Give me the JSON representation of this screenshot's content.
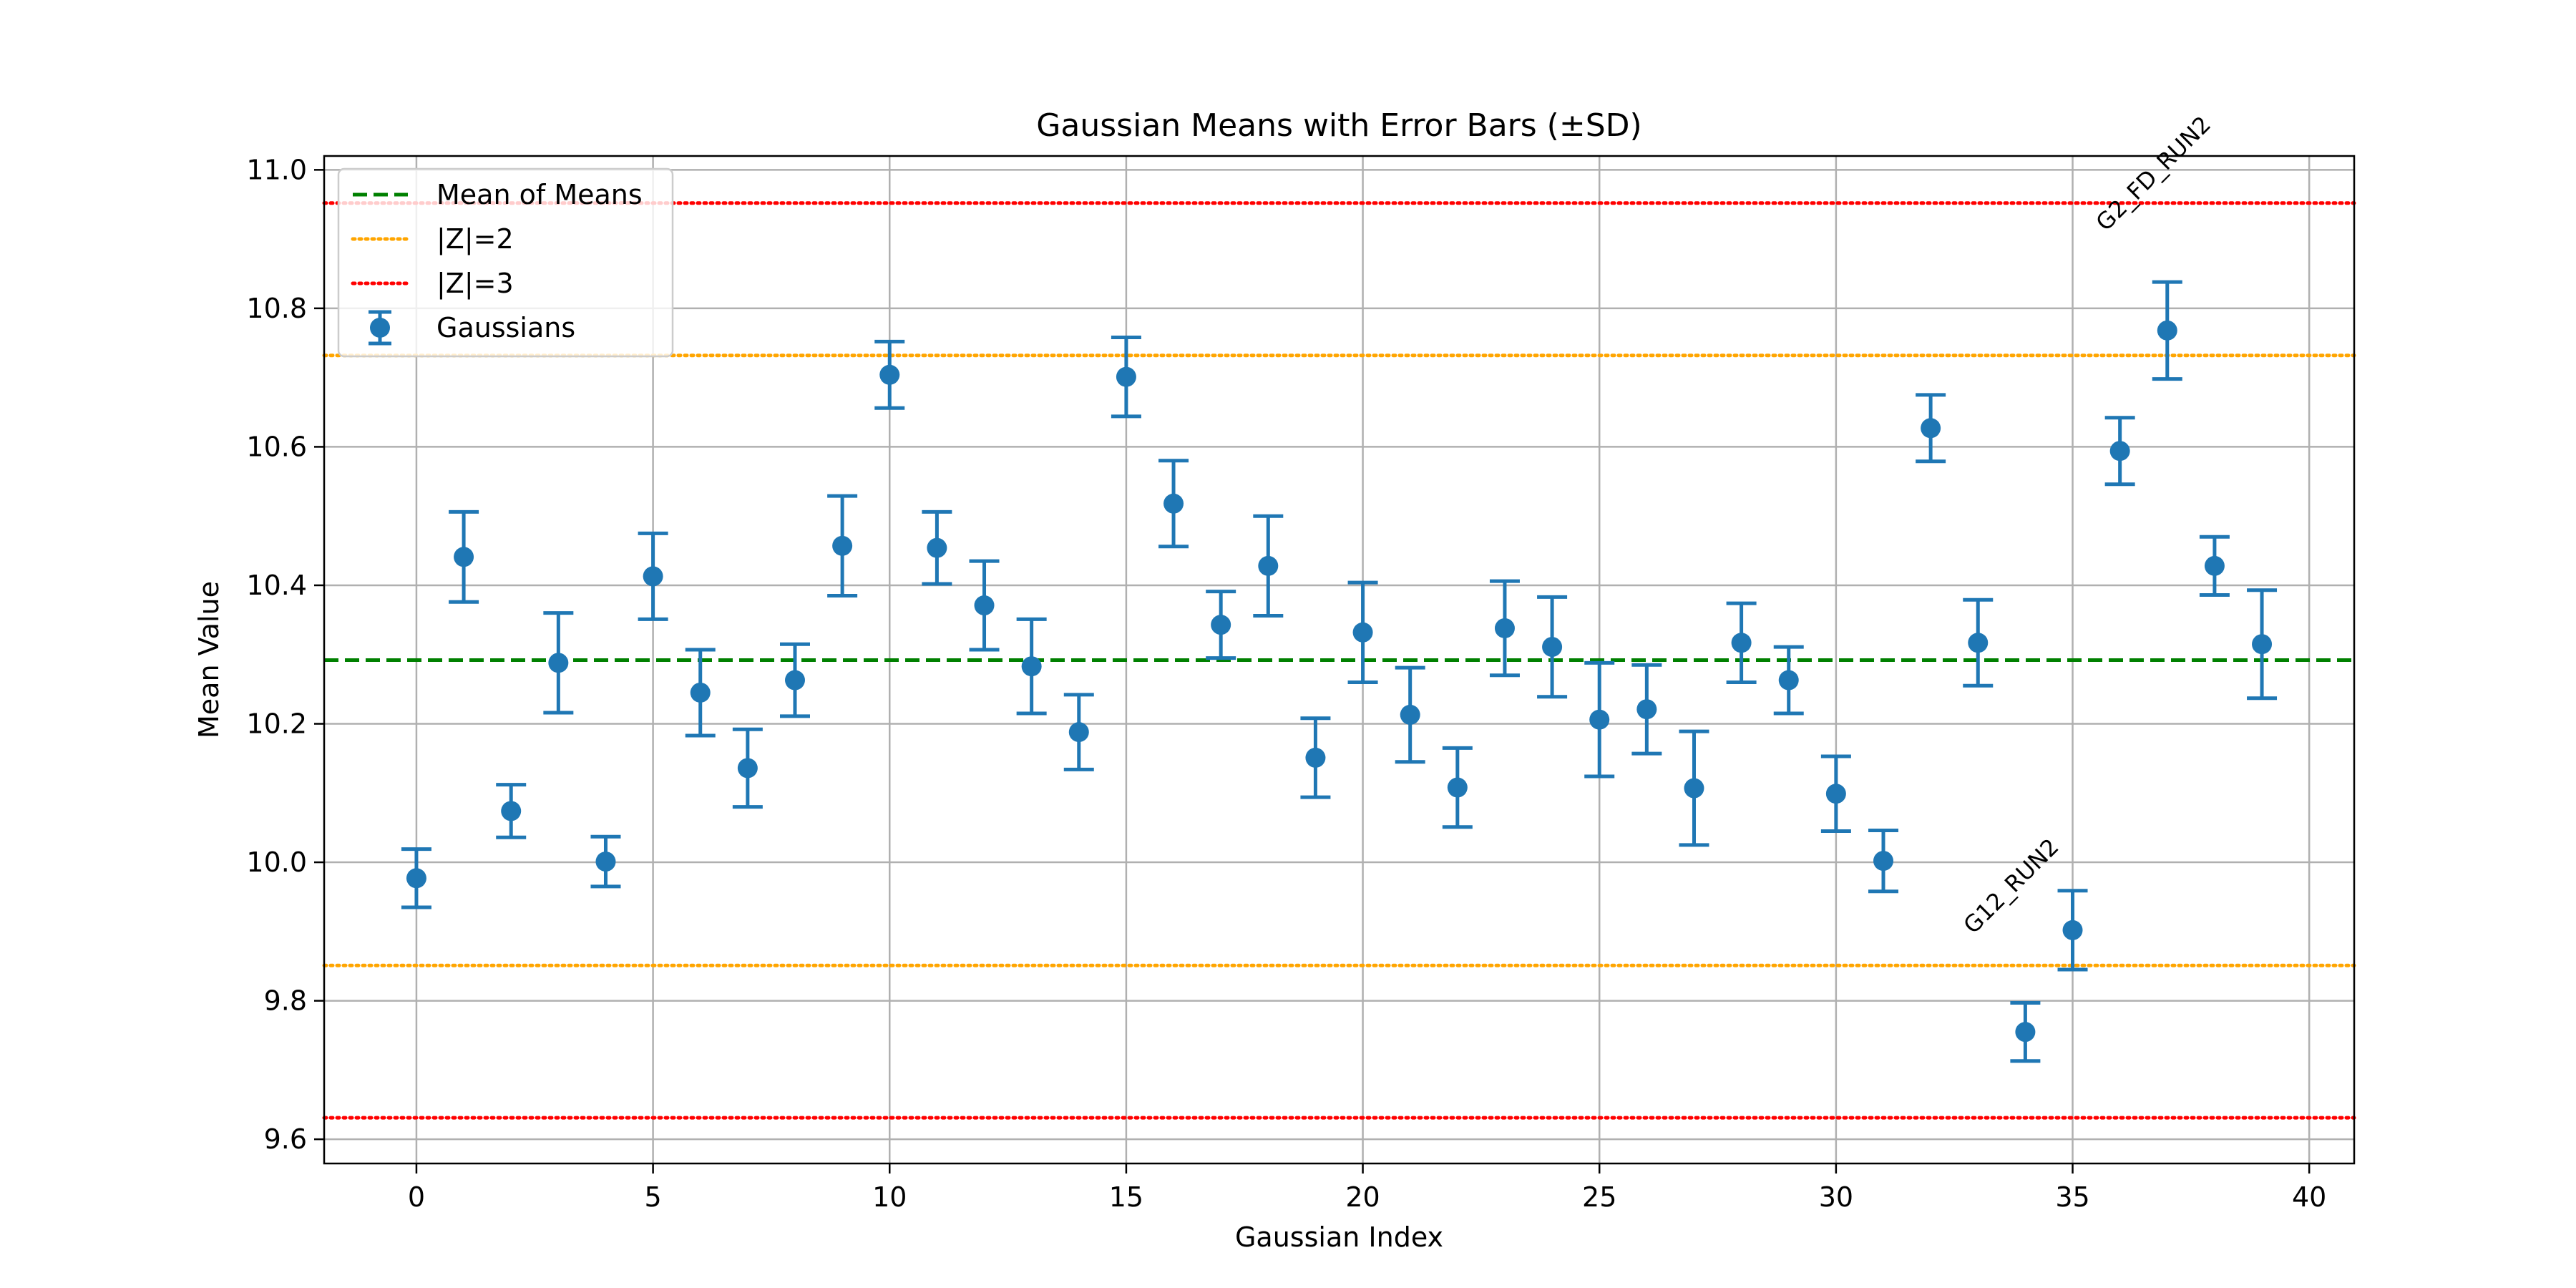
{
  "chart_data": {
    "type": "scatter",
    "title": "Gaussian Means with Error Bars (±SD)",
    "xlabel": "Gaussian Index",
    "ylabel": "Mean Value",
    "xlim": [
      -1.95,
      40.95
    ],
    "ylim": [
      9.565,
      11.02
    ],
    "x_ticks": [
      0,
      5,
      10,
      15,
      20,
      25,
      30,
      35,
      40
    ],
    "y_ticks": [
      9.6,
      9.8,
      10.0,
      10.2,
      10.4,
      10.6,
      10.8,
      11.0
    ],
    "grid": true,
    "legend_position": "top-left",
    "series": [
      {
        "name": "Gaussians",
        "color": "#1f77b4",
        "x": [
          0,
          1,
          2,
          3,
          4,
          5,
          6,
          7,
          8,
          9,
          10,
          11,
          12,
          13,
          14,
          15,
          16,
          17,
          18,
          19,
          20,
          21,
          22,
          23,
          24,
          25,
          26,
          27,
          28,
          29,
          30,
          31,
          32,
          33,
          34,
          35,
          36,
          37,
          38,
          39
        ],
        "y": [
          9.977,
          10.441,
          10.074,
          10.288,
          10.001,
          10.413,
          10.245,
          10.136,
          10.263,
          10.457,
          10.704,
          10.454,
          10.371,
          10.283,
          10.188,
          10.701,
          10.518,
          10.343,
          10.428,
          10.151,
          10.332,
          10.213,
          10.108,
          10.338,
          10.311,
          10.206,
          10.221,
          10.107,
          10.317,
          10.263,
          10.099,
          10.002,
          10.627,
          10.317,
          9.755,
          9.902,
          10.594,
          10.768,
          10.428,
          10.315
        ],
        "err": [
          0.042,
          0.065,
          0.038,
          0.072,
          0.036,
          0.062,
          0.062,
          0.056,
          0.052,
          0.072,
          0.048,
          0.052,
          0.064,
          0.068,
          0.054,
          0.057,
          0.062,
          0.048,
          0.072,
          0.057,
          0.072,
          0.068,
          0.057,
          0.068,
          0.072,
          0.082,
          0.064,
          0.082,
          0.057,
          0.048,
          0.054,
          0.044,
          0.048,
          0.062,
          0.042,
          0.057,
          0.048,
          0.07,
          0.042,
          0.078
        ]
      }
    ],
    "reference_lines": [
      {
        "name": "Mean of Means",
        "y": 10.292,
        "color": "#008000",
        "style": "dashed"
      },
      {
        "name": "|Z|=2",
        "y": 10.732,
        "color": "#ffa500",
        "style": "dotted"
      },
      {
        "name": "|Z|=2",
        "y": 9.851,
        "color": "#ffa500",
        "style": "dotted"
      },
      {
        "name": "|Z|=3",
        "y": 10.952,
        "color": "#ff0000",
        "style": "dotted"
      },
      {
        "name": "|Z|=3",
        "y": 9.631,
        "color": "#ff0000",
        "style": "dotted"
      }
    ],
    "legend": [
      {
        "label": "Mean of Means",
        "color": "#008000",
        "style": "dashed"
      },
      {
        "label": "|Z|=2",
        "color": "#ffa500",
        "style": "dotted"
      },
      {
        "label": "|Z|=3",
        "color": "#ff0000",
        "style": "dotted"
      },
      {
        "label": "Gaussians",
        "color": "#1f77b4",
        "style": "errorbar"
      }
    ],
    "annotations": [
      {
        "text": "G2_FD_RUN2",
        "x": 35.7,
        "y": 10.91,
        "rotation": -45
      },
      {
        "text": "G12_RUN2",
        "x": 32.9,
        "y": 9.895,
        "rotation": -45
      }
    ]
  }
}
